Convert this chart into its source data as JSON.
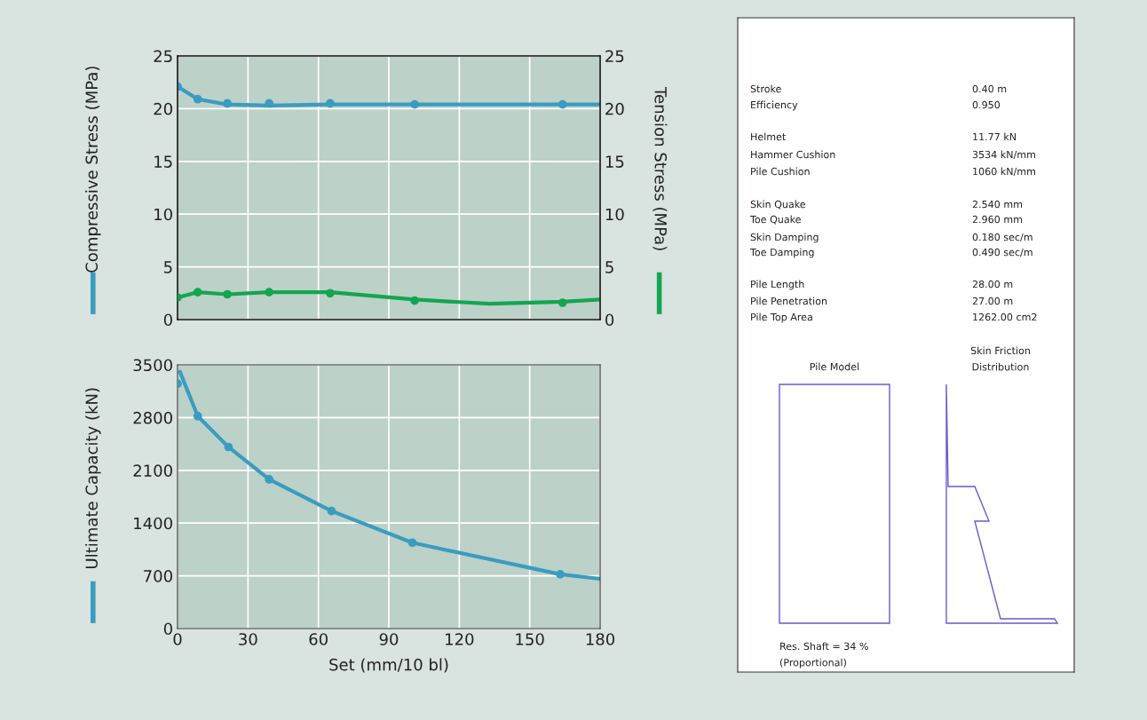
{
  "chart_data": [
    {
      "type": "line",
      "ylabel": "Compressive Stress (MPa)",
      "y2label": "Tension Stress (MPa)",
      "xlim": [
        0,
        180
      ],
      "xticks": [
        0,
        30,
        60,
        90,
        120,
        150,
        180
      ],
      "ylim": [
        0,
        25
      ],
      "yticks": [
        0,
        5,
        10,
        15,
        20,
        25
      ],
      "y2lim": [
        0,
        25
      ],
      "y2ticks": [
        0,
        5,
        10,
        15,
        20,
        25
      ],
      "grid": true,
      "tick_labels": "y",
      "series": [
        {
          "type": "line",
          "color": "#3a9cc0",
          "marker": "none",
          "x": [
            0,
            8.6,
            21.2,
            39,
            65,
            101,
            164,
            180
          ],
          "values": [
            22.1,
            20.9,
            20.4,
            20.3,
            20.4,
            20.4,
            20.4,
            20.4
          ]
        },
        {
          "type": "scatter",
          "color": "#3a9cc0",
          "marker": "circle",
          "x": [
            0,
            8.6,
            21.2,
            39,
            65,
            101,
            164
          ],
          "values": [
            22.1,
            20.9,
            20.5,
            20.5,
            20.5,
            20.4,
            20.4
          ]
        },
        {
          "type": "line",
          "axis": "y2",
          "color": "#14a550",
          "marker": "none",
          "x": [
            0,
            8.6,
            21.2,
            39,
            65,
            101,
            133,
            164,
            180
          ],
          "values": [
            2.1,
            2.6,
            2.4,
            2.6,
            2.6,
            1.9,
            1.5,
            1.7,
            1.9
          ]
        },
        {
          "type": "scatter",
          "axis": "y2",
          "color": "#14a550",
          "marker": "circle",
          "x": [
            0,
            8.6,
            21.2,
            39,
            65,
            101,
            164
          ],
          "values": [
            2.1,
            2.6,
            2.4,
            2.6,
            2.5,
            1.8,
            1.6
          ]
        }
      ]
    },
    {
      "type": "line",
      "ylabel": "Ultimate Capacity (kN)",
      "xlabel": "Set (mm/10 bl)",
      "xlim": [
        0,
        180
      ],
      "xticks": [
        0,
        30,
        60,
        90,
        120,
        150,
        180
      ],
      "ylim": [
        0,
        3500
      ],
      "yticks": [
        0,
        700,
        1400,
        2100,
        2800,
        3500
      ],
      "grid": true,
      "series": [
        {
          "type": "line",
          "color": "#3a9cc0",
          "marker": "none",
          "x": [
            1,
            8.6,
            21.7,
            39,
            65.6,
            100,
            163,
            180
          ],
          "values": [
            3410,
            2820,
            2410,
            1980,
            1560,
            1140,
            720,
            660
          ]
        },
        {
          "type": "scatter",
          "color": "#3a9cc0",
          "marker": "circle",
          "x": [
            0,
            8.6,
            21.7,
            39,
            65.6,
            100,
            163
          ],
          "values": [
            3250,
            2820,
            2410,
            1980,
            1560,
            1140,
            720
          ]
        }
      ]
    },
    {
      "type": "other",
      "annotations": [
        "Stroke",
        "0.40 m",
        "Efficiency",
        "0.950",
        "Helmet",
        "11.77 kN",
        "Hammer Cushion",
        "3534 kN/mm",
        "Pile Cushion",
        "1060 kN/mm",
        "Skin Quake",
        "2.540 mm",
        "Toe Quake",
        "2.960 mm",
        "Skin Damping",
        "0.180 sec/m",
        "Toe Damping",
        "0.490 sec/m",
        "Pile Length",
        "28.00 m",
        "Pile Penetration",
        "27.00 m",
        "Pile Top Area",
        "1262.00 cm2",
        "Pile Model",
        "Skin Friction\nDistribution",
        "Res. Shaft = 34 %\n(Proportional)"
      ]
    }
  ]
}
